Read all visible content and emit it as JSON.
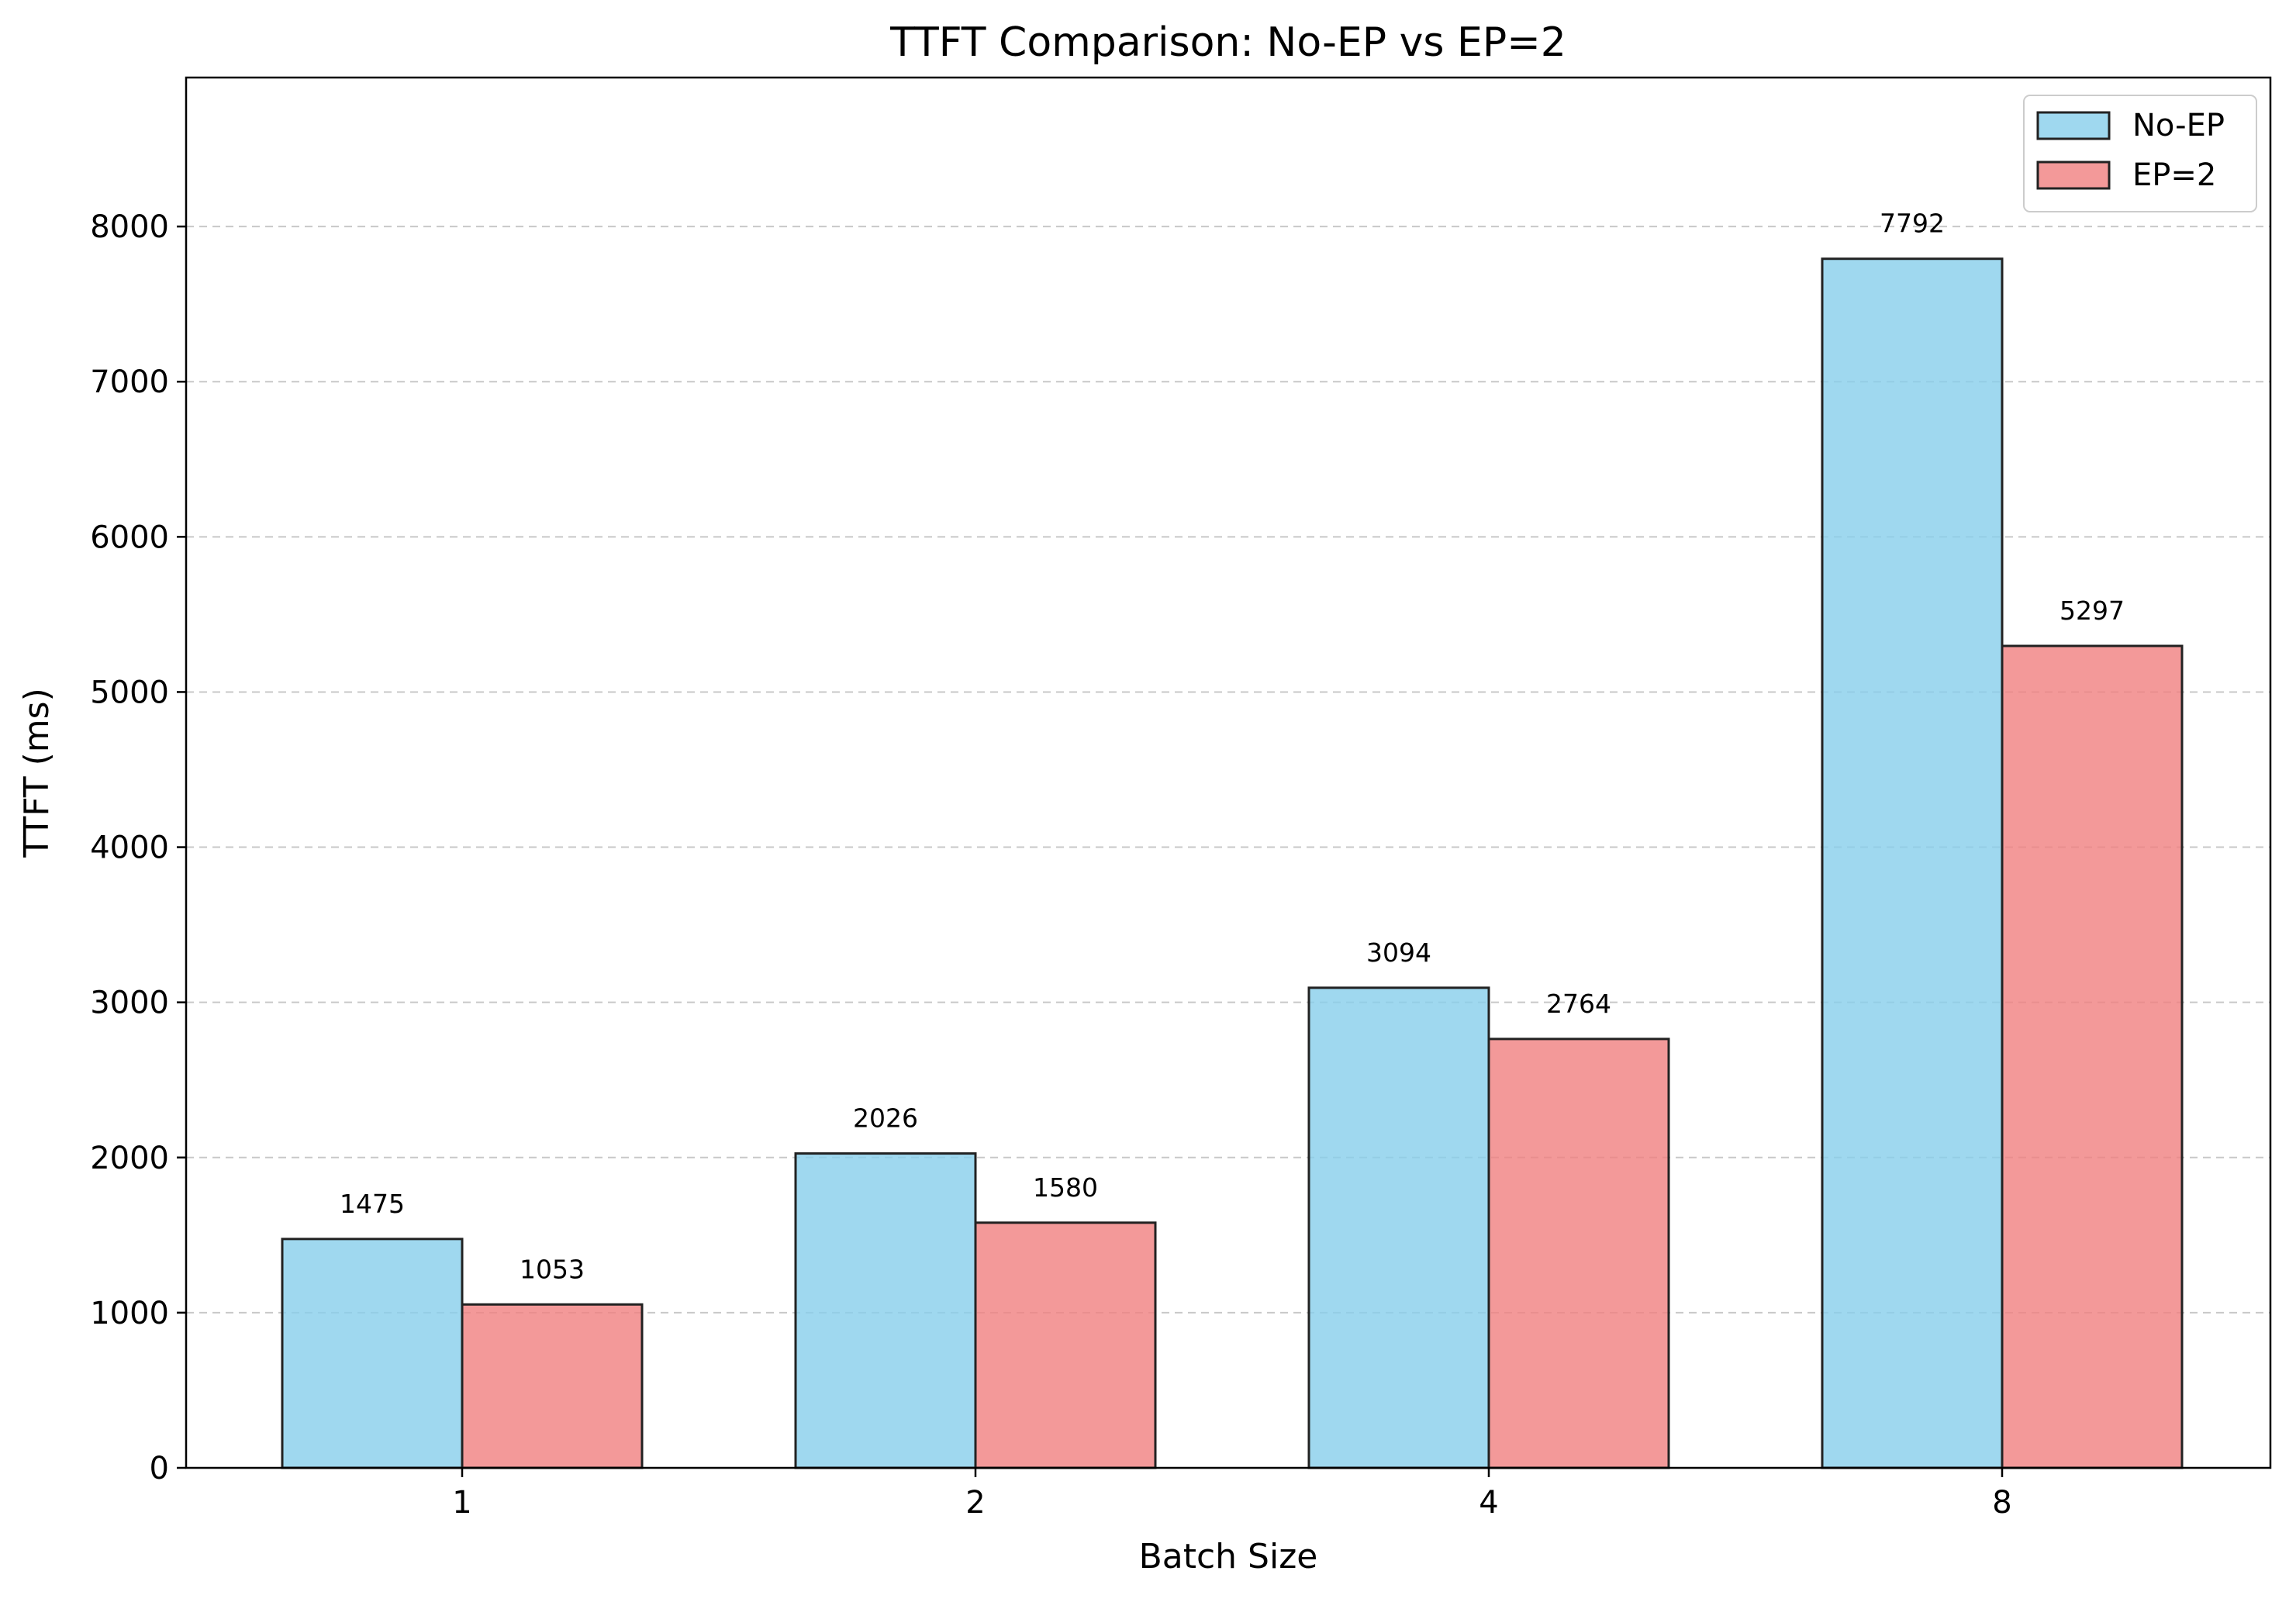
{
  "chart_data": {
    "type": "bar",
    "title": "TTFT Comparison: No-EP vs EP=2",
    "xlabel": "Batch Size",
    "ylabel": "TTFT (ms)",
    "categories": [
      "1",
      "2",
      "4",
      "8"
    ],
    "series": [
      {
        "name": "No-EP",
        "values": [
          1475,
          2026,
          3094,
          7792
        ],
        "color": "#87ceeb"
      },
      {
        "name": "EP=2",
        "values": [
          1053,
          1580,
          2764,
          5297
        ],
        "color": "#f08080"
      }
    ],
    "ylim": [
      0,
      8960
    ],
    "yticks": [
      0,
      1000,
      2000,
      3000,
      4000,
      5000,
      6000,
      7000,
      8000
    ],
    "grid": "y-dashed",
    "legend": "top-right",
    "data_labels": true,
    "bar_edge_color": "#222222"
  }
}
